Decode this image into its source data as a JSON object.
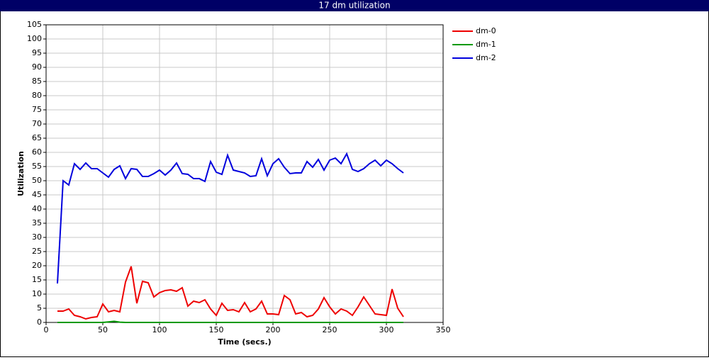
{
  "chart_data": {
    "type": "line",
    "title": "17 dm utilization",
    "x_label": "Time (secs.)",
    "y_label": "Utilization",
    "x": [
      10,
      15,
      20,
      25,
      30,
      35,
      40,
      45,
      50,
      55,
      60,
      65,
      70,
      75,
      80,
      85,
      90,
      95,
      100,
      105,
      110,
      115,
      120,
      125,
      130,
      135,
      140,
      145,
      150,
      155,
      160,
      165,
      170,
      175,
      180,
      185,
      190,
      195,
      200,
      205,
      210,
      215,
      220,
      225,
      230,
      235,
      240,
      245,
      250,
      255,
      260,
      265,
      270,
      275,
      280,
      285,
      290,
      295,
      300,
      305,
      310,
      315
    ],
    "series": [
      {
        "name": "dm-0",
        "color": "#ee0000",
        "values": [
          4,
          4,
          4.75,
          2.5,
          2,
          1.25,
          1.75,
          2,
          6.5,
          3.75,
          4.25,
          3.75,
          14.25,
          19.75,
          6.75,
          14.5,
          14,
          9,
          10.5,
          11.25,
          11.5,
          11,
          12.25,
          5.75,
          7.5,
          7,
          8,
          4.75,
          2.5,
          6.75,
          4.25,
          4.5,
          3.75,
          7,
          3.75,
          4.75,
          7.5,
          3,
          3,
          2.75,
          9.5,
          8,
          3,
          3.5,
          2,
          2.5,
          4.75,
          8.75,
          5.5,
          3,
          4.75,
          4,
          2.5,
          5.5,
          9,
          6,
          3,
          2.75,
          2.5,
          11.75,
          5,
          2
        ]
      },
      {
        "name": "dm-1",
        "color": "#009900",
        "values": [
          0,
          0,
          0,
          0,
          0,
          0,
          0,
          0,
          0,
          0.2,
          0.4,
          0.1,
          0,
          0,
          0,
          0,
          0,
          0,
          0,
          0,
          0,
          0,
          0,
          0,
          0,
          0,
          0,
          0,
          0,
          0,
          0,
          0,
          0,
          0,
          0,
          0,
          0,
          0,
          0,
          0,
          0,
          0,
          0,
          0,
          0,
          0,
          0,
          0,
          0,
          0,
          0,
          0,
          0,
          0,
          0,
          0,
          0,
          0,
          0,
          0,
          0,
          0
        ]
      },
      {
        "name": "dm-2",
        "color": "#0000dd",
        "values": [
          13.75,
          50,
          48.5,
          56,
          54,
          56.25,
          54.25,
          54.25,
          52.75,
          51.25,
          54,
          55.25,
          50.75,
          54.25,
          54,
          51.5,
          51.5,
          52.5,
          53.75,
          52,
          53.75,
          56.25,
          52.5,
          52.25,
          50.75,
          50.75,
          49.75,
          56.75,
          53,
          52.25,
          59,
          53.75,
          53.25,
          52.75,
          51.5,
          51.75,
          57.75,
          51.75,
          56,
          57.75,
          54.75,
          52.5,
          52.75,
          52.75,
          56.75,
          54.75,
          57.5,
          53.75,
          57.25,
          58,
          56,
          59.5,
          54,
          53.25,
          54.25,
          56,
          57.25,
          55.25,
          57.25,
          56,
          54.25,
          52.75
        ]
      }
    ],
    "xlim": [
      0,
      350
    ],
    "xticks": [
      0,
      50,
      100,
      150,
      200,
      250,
      300,
      350
    ],
    "ylim": [
      0,
      105
    ],
    "yticks": [
      0,
      5,
      10,
      15,
      20,
      25,
      30,
      35,
      40,
      45,
      50,
      55,
      60,
      65,
      70,
      75,
      80,
      85,
      90,
      95,
      100,
      105
    ],
    "grid": true,
    "legend": "right"
  }
}
